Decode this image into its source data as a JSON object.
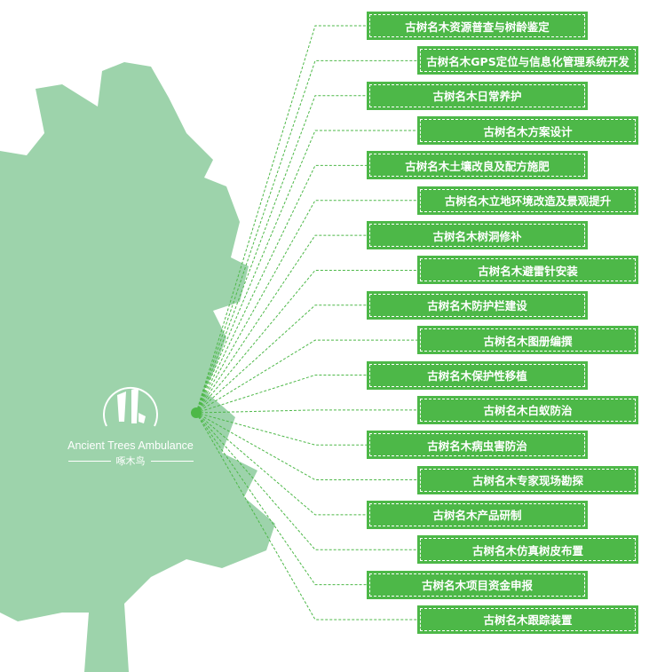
{
  "colors": {
    "accent": "#4db848",
    "tree": "#9dd3ab",
    "line": "#4db848"
  },
  "logo": {
    "english": "Ancient Trees Ambulance",
    "chinese": "啄木鸟",
    "icon": "woodpecker-tree-icon"
  },
  "items": [
    "古树名木资源普查与树龄鉴定",
    "古树名木GPS定位与信息化管理系统开发",
    "古树名木日常养护",
    "古树名木方案设计",
    "古树名木土壤改良及配方施肥",
    "古树名木立地环境改造及景观提升",
    "古树名木树洞修补",
    "古树名木避雷针安装",
    "古树名木防护栏建设",
    "古树名木图册编撰",
    "古树名木保护性移植",
    "古树名木白蚁防治",
    "古树名木病虫害防治",
    "古树名木专家现场勘探",
    "古树名木产品研制",
    "古树名木仿真树皮布置",
    "古树名木项目资金申报",
    "古树名木跟踪装置"
  ]
}
